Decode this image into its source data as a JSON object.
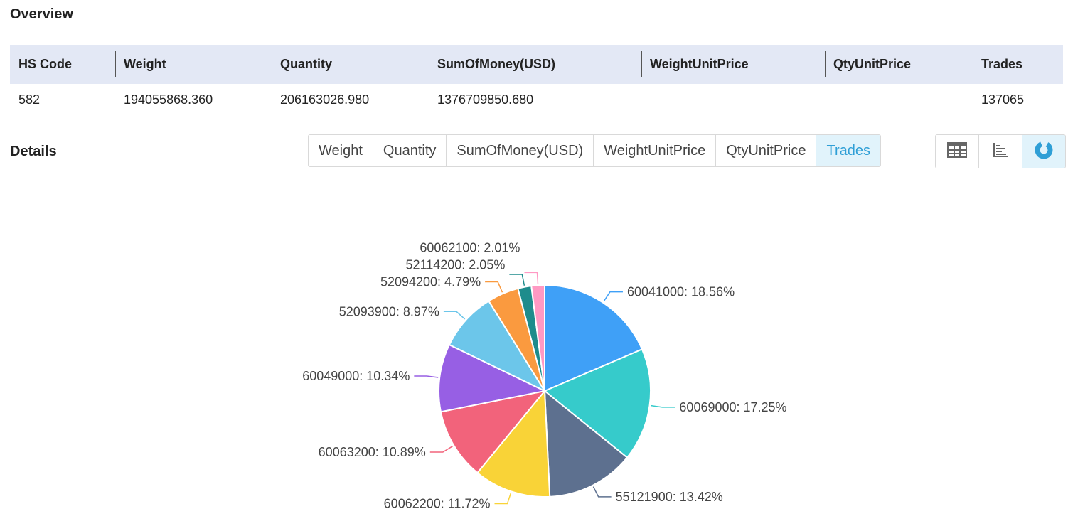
{
  "overview": {
    "title": "Overview",
    "headers": [
      "HS Code",
      "Weight",
      "Quantity",
      "SumOfMoney(USD)",
      "WeightUnitPrice",
      "QtyUnitPrice",
      "Trades"
    ],
    "row": [
      "582",
      "194055868.360",
      "206163026.980",
      "1376709850.680",
      "",
      "",
      "137065"
    ]
  },
  "details": {
    "title": "Details",
    "metric_tabs": [
      "Weight",
      "Quantity",
      "SumOfMoney(USD)",
      "WeightUnitPrice",
      "QtyUnitPrice",
      "Trades"
    ],
    "active_metric": "Trades",
    "view_icons": [
      "table-icon",
      "bar-chart-icon",
      "pie-chart-icon"
    ],
    "active_view": "pie-chart-icon",
    "accent_color": "#2f9fd6",
    "active_bg": "#e1f3fb"
  },
  "chart_data": {
    "type": "pie",
    "title": "",
    "start_angle": 90,
    "direction": "clockwise",
    "slices": [
      {
        "label": "60041000",
        "value": 18.56,
        "display": "60041000: 18.56%",
        "color": "#3fa0f7"
      },
      {
        "label": "60069000",
        "value": 17.25,
        "display": "60069000: 17.25%",
        "color": "#36cbcb"
      },
      {
        "label": "55121900",
        "value": 13.42,
        "display": "55121900: 13.42%",
        "color": "#5d708f"
      },
      {
        "label": "60062200",
        "value": 11.72,
        "display": "60062200: 11.72%",
        "color": "#f9d337"
      },
      {
        "label": "60063200",
        "value": 10.89,
        "display": "60063200: 10.89%",
        "color": "#f2637b"
      },
      {
        "label": "60049000",
        "value": 10.34,
        "display": "60049000: 10.34%",
        "color": "#975fe4"
      },
      {
        "label": "52093900",
        "value": 8.97,
        "display": "52093900: 8.97%",
        "color": "#6cc6ea"
      },
      {
        "label": "52094200",
        "value": 4.79,
        "display": "52094200: 4.79%",
        "color": "#fa9a3f"
      },
      {
        "label": "52114200",
        "value": 2.05,
        "display": "52114200: 2.05%",
        "color": "#1e8c8c"
      },
      {
        "label": "60062100",
        "value": 2.01,
        "display": "60062100: 2.01%",
        "color": "#ff99c3"
      }
    ]
  }
}
